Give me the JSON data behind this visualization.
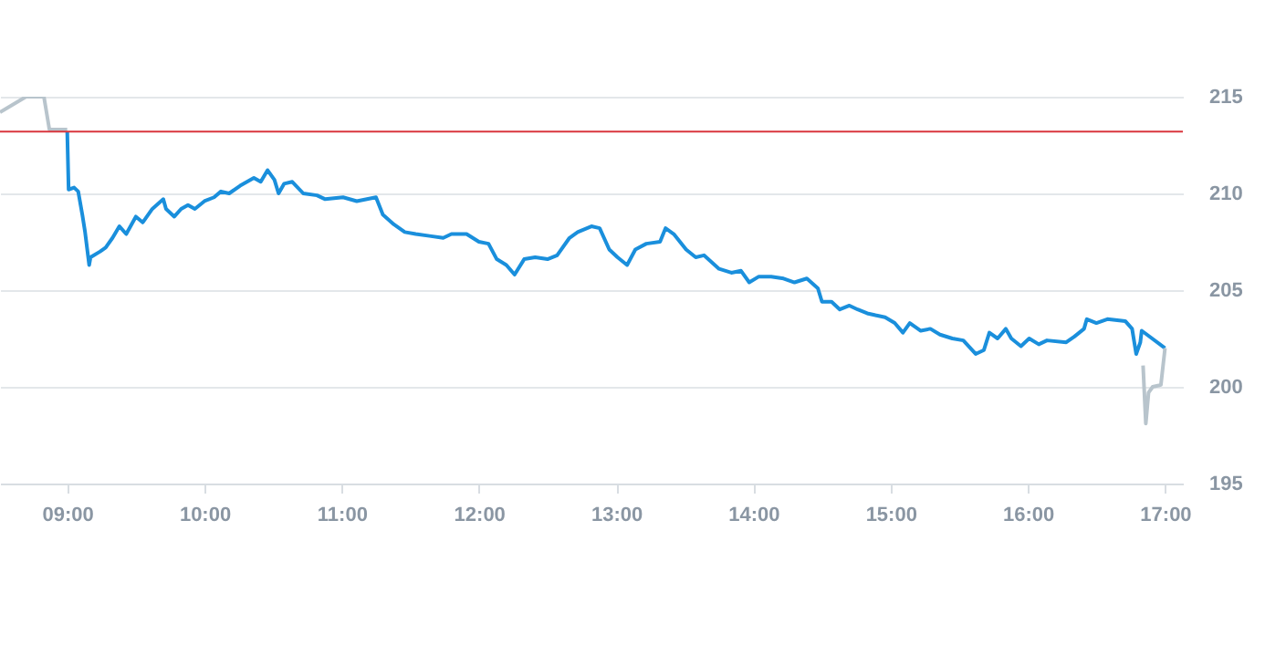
{
  "chart_data": {
    "type": "line",
    "grid": "y",
    "xlim": [
      8.51,
      17.13
    ],
    "ylim": [
      195,
      215
    ],
    "xticks": [
      {
        "value": 9,
        "label": "09:00"
      },
      {
        "value": 10,
        "label": "10:00"
      },
      {
        "value": 11,
        "label": "11:00"
      },
      {
        "value": 12,
        "label": "12:00"
      },
      {
        "value": 13,
        "label": "13:00"
      },
      {
        "value": 14,
        "label": "14:00"
      },
      {
        "value": 15,
        "label": "15:00"
      },
      {
        "value": 16,
        "label": "16:00"
      },
      {
        "value": 17,
        "label": "17:00"
      }
    ],
    "yticks": [
      195,
      200,
      205,
      210,
      215
    ],
    "ref_lines": [
      {
        "axis": "y",
        "value": 213.2,
        "color": "#d9363e"
      }
    ],
    "series": [
      {
        "color": "#b8c4cc",
        "x": [
          8.51,
          8.7,
          8.83,
          8.87,
          9.0
        ],
        "values": [
          214.2,
          215.0,
          215.0,
          213.3,
          213.3
        ]
      },
      {
        "color": "#1a8fdc",
        "x": [
          9.0,
          9.01,
          9.05,
          9.08,
          9.11,
          9.13,
          9.16,
          9.17,
          9.24,
          9.28,
          9.33,
          9.38,
          9.43,
          9.5,
          9.55,
          9.62,
          9.7,
          9.72,
          9.78,
          9.83,
          9.88,
          9.93,
          10.0,
          10.07,
          10.12,
          10.18,
          10.26,
          10.36,
          10.41,
          10.46,
          10.51,
          10.54,
          10.58,
          10.64,
          10.72,
          10.82,
          10.88,
          11.01,
          11.11,
          11.25,
          11.3,
          11.38,
          11.46,
          11.54,
          11.64,
          11.74,
          11.8,
          11.91,
          12.0,
          12.07,
          12.13,
          12.2,
          12.26,
          12.33,
          12.41,
          12.5,
          12.57,
          12.66,
          12.72,
          12.82,
          12.88,
          12.95,
          13.01,
          13.08,
          13.14,
          13.22,
          13.32,
          13.36,
          13.42,
          13.51,
          13.58,
          13.64,
          13.75,
          13.84,
          13.91,
          13.97,
          14.04,
          14.13,
          14.22,
          14.3,
          14.39,
          14.47,
          14.5,
          14.57,
          14.63,
          14.7,
          14.76,
          14.83,
          14.89,
          14.96,
          15.03,
          15.09,
          15.14,
          15.22,
          15.29,
          15.36,
          15.45,
          15.53,
          15.62,
          15.68,
          15.72,
          15.78,
          15.84,
          15.88,
          15.95,
          16.01,
          16.08,
          16.14,
          16.28,
          16.34,
          16.41,
          16.43,
          16.5,
          16.58,
          16.71,
          16.76,
          16.79,
          16.82,
          16.83,
          17.0
        ],
        "values": [
          213.2,
          210.2,
          210.3,
          210.1,
          208.9,
          208.0,
          206.3,
          206.7,
          207.0,
          207.2,
          207.7,
          208.3,
          207.9,
          208.8,
          208.5,
          209.2,
          209.7,
          209.2,
          208.8,
          209.2,
          209.4,
          209.2,
          209.6,
          209.8,
          210.1,
          210.0,
          210.4,
          210.8,
          210.6,
          211.2,
          210.7,
          210.0,
          210.5,
          210.6,
          210.0,
          209.9,
          209.7,
          209.8,
          209.6,
          209.8,
          208.9,
          208.4,
          208.0,
          207.9,
          207.8,
          207.7,
          207.9,
          207.9,
          207.5,
          207.4,
          206.6,
          206.3,
          205.8,
          206.6,
          206.7,
          206.6,
          206.8,
          207.7,
          208.0,
          208.3,
          208.2,
          207.1,
          206.7,
          206.3,
          207.1,
          207.4,
          207.5,
          208.2,
          207.9,
          207.1,
          206.7,
          206.8,
          206.1,
          205.9,
          206.0,
          205.4,
          205.7,
          205.7,
          205.6,
          205.4,
          205.6,
          205.1,
          204.4,
          204.4,
          204.0,
          204.2,
          204.0,
          203.8,
          203.7,
          203.6,
          203.3,
          202.8,
          203.3,
          202.9,
          203.0,
          202.7,
          202.5,
          202.4,
          201.7,
          201.9,
          202.8,
          202.5,
          203.0,
          202.5,
          202.1,
          202.5,
          202.2,
          202.4,
          202.3,
          202.6,
          203.0,
          203.5,
          203.3,
          203.5,
          203.4,
          203.0,
          201.7,
          202.3,
          202.9,
          202.0
        ]
      },
      {
        "color": "#b8c4cc",
        "x": [
          16.84,
          16.86,
          16.88,
          16.91,
          16.97,
          17.0
        ],
        "values": [
          201.1,
          198.1,
          199.7,
          200.0,
          200.1,
          202.0
        ]
      }
    ]
  }
}
